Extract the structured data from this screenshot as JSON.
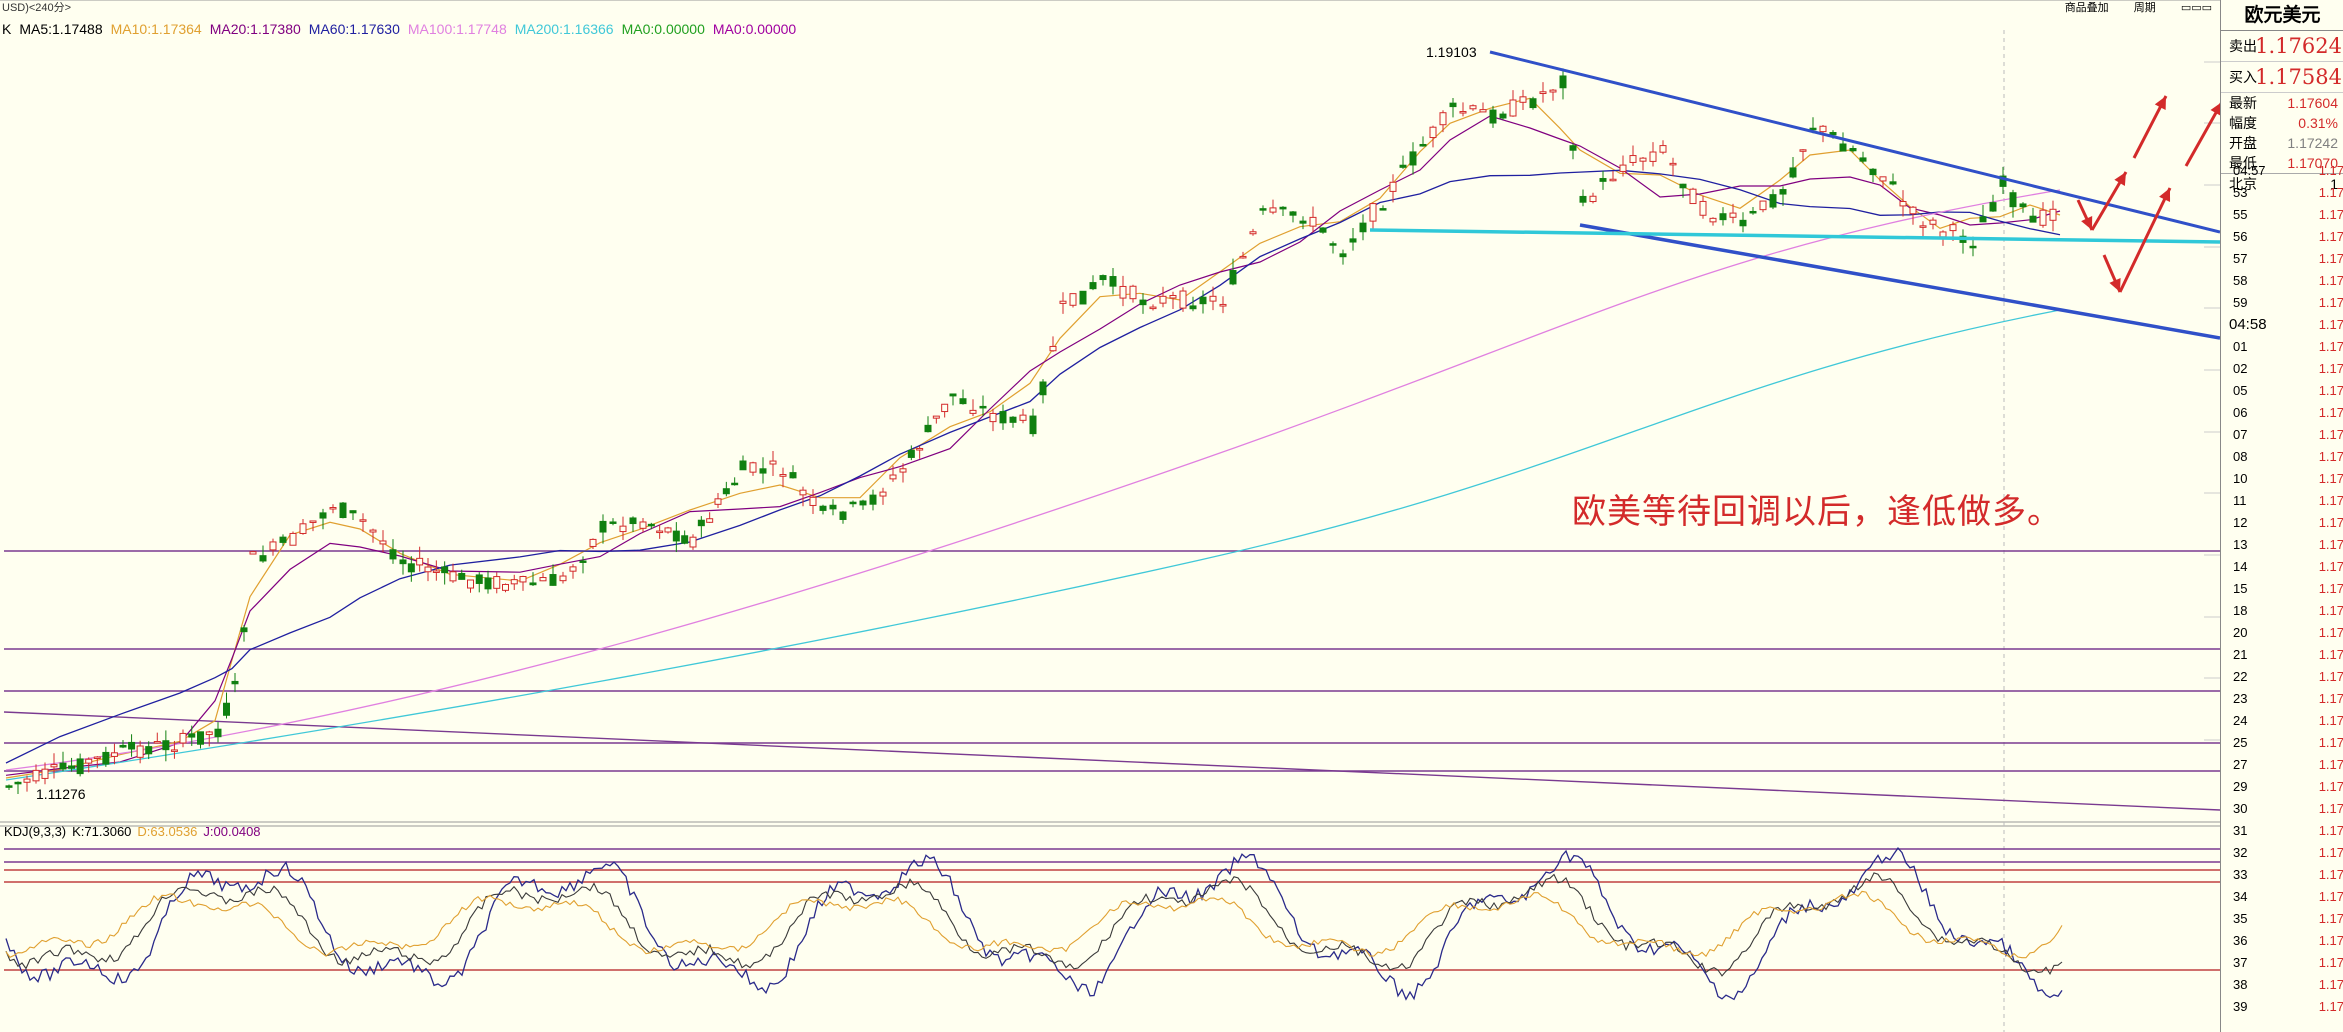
{
  "topbar": {
    "instrument": "USD)<240分>",
    "tools": [
      "商品叠加",
      "周期"
    ]
  },
  "ma_legend": [
    {
      "text": "K",
      "color": "#000000"
    },
    {
      "text": "MA5:1.17488",
      "color": "#000000"
    },
    {
      "text": "MA10:1.17364",
      "color": "#e0a030"
    },
    {
      "text": "MA20:1.17380",
      "color": "#800080"
    },
    {
      "text": "MA60:1.17630",
      "color": "#2020a0"
    },
    {
      "text": "MA100:1.17748",
      "color": "#e080e0"
    },
    {
      "text": "MA200:1.16366",
      "color": "#40c8d8"
    },
    {
      "text": "MA0:0.00000",
      "color": "#20a020"
    },
    {
      "text": "MA0:0.00000",
      "color": "#a000a0"
    }
  ],
  "kdj_legend": [
    {
      "text": "KDJ(9,3,3)",
      "color": "#000000"
    },
    {
      "text": "K:71.3060",
      "color": "#000000"
    },
    {
      "text": "D:63.0536",
      "color": "#e0a030"
    },
    {
      "text": "J:00.0408",
      "color": "#800080"
    }
  ],
  "chart_labels": {
    "high": "1.19103",
    "low": "1.11276"
  },
  "annotation": "欧美等待回调以后，逢低做多。",
  "panel": {
    "title": "欧元美元",
    "sell_label": "卖出",
    "sell_value": "1.17624",
    "buy_label": "买入",
    "buy_value": "1.17584",
    "stats": [
      {
        "label": "最新",
        "value": "1.17604",
        "color": "#d32a2a"
      },
      {
        "label": "幅度",
        "value": "0.31%",
        "color": "#d32a2a"
      },
      {
        "label": "开盘",
        "value": "1.17242",
        "color": "#808080"
      },
      {
        "label": "最低",
        "value": "1.17070",
        "color": "#d32a2a"
      }
    ],
    "beijing_label": "北京",
    "beijing_value": "1",
    "ticks_a": [
      {
        "t": "04:57",
        "p": "1.17"
      },
      {
        "t": "53",
        "p": "1.17"
      },
      {
        "t": "55",
        "p": "1.17"
      },
      {
        "t": "56",
        "p": "1.17"
      },
      {
        "t": "57",
        "p": "1.17"
      },
      {
        "t": "58",
        "p": "1.17"
      },
      {
        "t": "59",
        "p": "1.17"
      }
    ],
    "big_time": "04:58",
    "big_time_price": "1.17",
    "ticks_b": [
      {
        "t": "01",
        "p": "1.17"
      },
      {
        "t": "02",
        "p": "1.17"
      },
      {
        "t": "05",
        "p": "1.17"
      },
      {
        "t": "06",
        "p": "1.17"
      },
      {
        "t": "07",
        "p": "1.17"
      },
      {
        "t": "08",
        "p": "1.17"
      },
      {
        "t": "10",
        "p": "1.17"
      },
      {
        "t": "11",
        "p": "1.17"
      },
      {
        "t": "12",
        "p": "1.17"
      },
      {
        "t": "13",
        "p": "1.17"
      },
      {
        "t": "14",
        "p": "1.17"
      },
      {
        "t": "15",
        "p": "1.17"
      },
      {
        "t": "18",
        "p": "1.17"
      },
      {
        "t": "20",
        "p": "1.17"
      },
      {
        "t": "21",
        "p": "1.17"
      },
      {
        "t": "22",
        "p": "1.17"
      },
      {
        "t": "23",
        "p": "1.17"
      },
      {
        "t": "24",
        "p": "1.17"
      },
      {
        "t": "25",
        "p": "1.17"
      },
      {
        "t": "27",
        "p": "1.17"
      },
      {
        "t": "29",
        "p": "1.17"
      },
      {
        "t": "30",
        "p": "1.17"
      },
      {
        "t": "31",
        "p": "1.17"
      },
      {
        "t": "32",
        "p": "1.17"
      },
      {
        "t": "33",
        "p": "1.17"
      },
      {
        "t": "34",
        "p": "1.17"
      },
      {
        "t": "35",
        "p": "1.17"
      },
      {
        "t": "36",
        "p": "1.17"
      },
      {
        "t": "37",
        "p": "1.17"
      },
      {
        "t": "38",
        "p": "1.17"
      },
      {
        "t": "39",
        "p": "1.17"
      }
    ]
  },
  "colors": {
    "up": "#d32a2a",
    "down": "#108010",
    "channel": "#3050c8",
    "support": "#30c8d8",
    "arrow": "#d32a2a"
  }
}
